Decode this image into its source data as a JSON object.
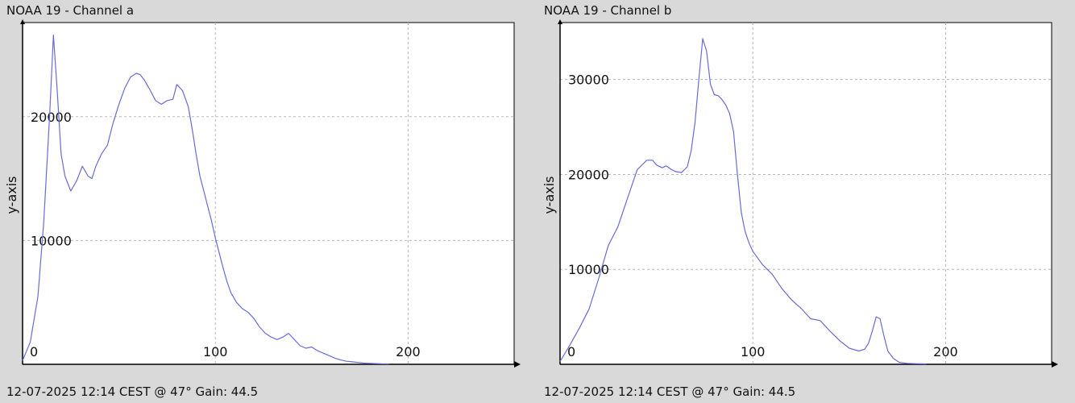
{
  "panels": [
    {
      "title": "NOAA 19 - Channel a",
      "footer": "12-07-2025 12:14 CEST @ 47° Gain: 44.5"
    },
    {
      "title": "NOAA 19 - Channel b",
      "footer": "12-07-2025 12:14 CEST @ 47° Gain: 44.5"
    }
  ],
  "colors": {
    "background": "#d9d9d9",
    "plot_bg": "#ffffff",
    "line": "#6a6ad8",
    "grid": "#b8b8b8",
    "axis": "#000000"
  },
  "chart_data": [
    {
      "type": "line",
      "title": "NOAA 19 - Channel a",
      "xlabel": "",
      "ylabel": "y-axis",
      "xlim": [
        0,
        255
      ],
      "ylim": [
        0,
        27600
      ],
      "xticks": [
        0,
        100,
        200
      ],
      "yticks": [
        10000,
        20000
      ],
      "grid": true,
      "series": [
        {
          "x": [
            0,
            4,
            8,
            11,
            14,
            16,
            18,
            20,
            22,
            25,
            28,
            31,
            34,
            36,
            38,
            41,
            44,
            47,
            50,
            53,
            56,
            59,
            61,
            63,
            66,
            69,
            72,
            75,
            78,
            80,
            83,
            86,
            88,
            90,
            92,
            94,
            96,
            98,
            100,
            102,
            104,
            106,
            108,
            111,
            114,
            117,
            120,
            123,
            126,
            129,
            132,
            135,
            138,
            141,
            144,
            147,
            150,
            153,
            156,
            159,
            162,
            165,
            168,
            171,
            174,
            177,
            180,
            183,
            186,
            190
          ],
          "y": [
            300,
            1800,
            5500,
            11500,
            20000,
            26600,
            22000,
            17000,
            15200,
            14000,
            14800,
            16000,
            15200,
            15000,
            16000,
            17000,
            17700,
            19500,
            21000,
            22300,
            23200,
            23500,
            23400,
            23000,
            22200,
            21300,
            21000,
            21300,
            21400,
            22600,
            22100,
            20800,
            19000,
            17000,
            15200,
            14000,
            12800,
            11600,
            10200,
            9000,
            7800,
            6700,
            5800,
            5000,
            4500,
            4200,
            3700,
            3000,
            2500,
            2200,
            2000,
            2200,
            2500,
            2000,
            1500,
            1300,
            1400,
            1100,
            900,
            700,
            500,
            350,
            250,
            200,
            150,
            100,
            80,
            60,
            40,
            30
          ]
        }
      ]
    },
    {
      "type": "line",
      "title": "NOAA 19 - Channel b",
      "xlabel": "",
      "ylabel": "y-axis",
      "xlim": [
        0,
        255
      ],
      "ylim": [
        0,
        36000
      ],
      "xticks": [
        0,
        100,
        200
      ],
      "yticks": [
        10000,
        20000,
        30000
      ],
      "grid": true,
      "series": [
        {
          "x": [
            0,
            5,
            10,
            15,
            20,
            25,
            30,
            35,
            40,
            45,
            48,
            50,
            53,
            55,
            58,
            60,
            63,
            66,
            68,
            70,
            72,
            74,
            76,
            78,
            80,
            82,
            84,
            86,
            88,
            90,
            92,
            94,
            96,
            98,
            100,
            105,
            110,
            115,
            120,
            125,
            130,
            135,
            140,
            145,
            150,
            155,
            158,
            160,
            162,
            164,
            166,
            168,
            170,
            173,
            176,
            180,
            185,
            190
          ],
          "y": [
            300,
            2000,
            3800,
            5800,
            9000,
            12500,
            14500,
            17500,
            20500,
            21500,
            21500,
            21000,
            20700,
            20900,
            20500,
            20300,
            20200,
            20800,
            22500,
            25500,
            30000,
            34300,
            33000,
            29500,
            28400,
            28300,
            27900,
            27300,
            26400,
            24500,
            20000,
            16000,
            14000,
            12800,
            11900,
            10500,
            9500,
            8000,
            6800,
            5900,
            4800,
            4600,
            3500,
            2500,
            1700,
            1400,
            1600,
            2200,
            3500,
            5000,
            4800,
            3000,
            1400,
            600,
            200,
            100,
            60,
            40
          ]
        }
      ]
    }
  ]
}
